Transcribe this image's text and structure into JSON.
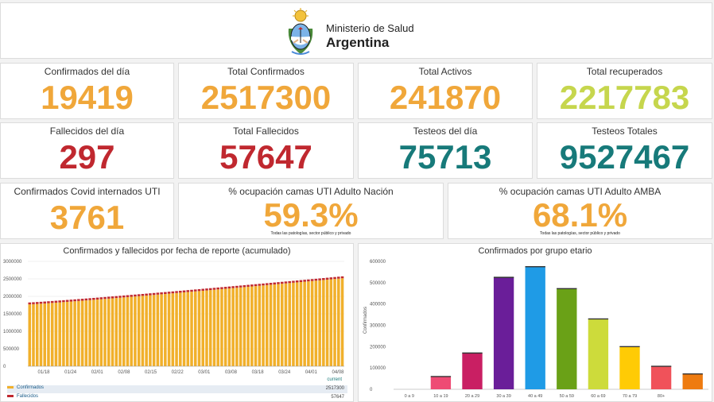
{
  "header": {
    "ministry": "Ministerio de Salud",
    "country": "Argentina"
  },
  "colors": {
    "orange": "#f0a73a",
    "lime": "#c6d64d",
    "red": "#c0282f",
    "teal": "#177a7a",
    "bar_orange": "#f1b02b",
    "line_red": "#c0282f"
  },
  "kpis": {
    "confirmados_dia": {
      "label": "Confirmados del día",
      "value": "19419"
    },
    "total_confirmados": {
      "label": "Total Confirmados",
      "value": "2517300"
    },
    "total_activos": {
      "label": "Total Activos",
      "value": "241870"
    },
    "total_recuperados": {
      "label": "Total recuperados",
      "value": "2217783"
    },
    "fallecidos_dia": {
      "label": "Fallecidos del día",
      "value": "297"
    },
    "total_fallecidos": {
      "label": "Total Fallecidos",
      "value": "57647"
    },
    "testeos_dia": {
      "label": "Testeos del día",
      "value": "75713"
    },
    "testeos_totales": {
      "label": "Testeos Totales",
      "value": "9527467"
    },
    "internados_uti": {
      "label": "Confirmados Covid internados UTI",
      "value": "3761"
    },
    "ocupacion_nacion": {
      "label": "% ocupación camas UTI Adulto Nación",
      "value": "59.3%",
      "note": "Todas las patologías, sector público y privado"
    },
    "ocupacion_amba": {
      "label": "% ocupación camas UTI Adulto AMBA",
      "value": "68.1%",
      "note": "Todas las patologías, sector público y privado"
    }
  },
  "legend": {
    "current_label": "current",
    "confirmados": {
      "label": "Confirmados",
      "value": "2517300"
    },
    "fallecidos": {
      "label": "Fallecidos",
      "value": "57647"
    }
  },
  "chart_data": [
    {
      "type": "bar",
      "title": "Confirmados y fallecidos por fecha de reporte (acumulado)",
      "ylim": [
        0,
        3000000
      ],
      "y_ticks": [
        "3000000",
        "2500000",
        "2000000",
        "1500000",
        "1000000",
        "500000",
        "0"
      ],
      "x_tick_labels": [
        "01/18",
        "01/24",
        "02/01",
        "02/08",
        "02/15",
        "02/22",
        "03/01",
        "03/08",
        "03/18",
        "03/24",
        "04/01",
        "04/08"
      ],
      "series": [
        {
          "name": "Confirmados",
          "start": 1770000,
          "end": 2517300
        },
        {
          "name": "Fallecidos",
          "start": 45000,
          "end": 57647
        }
      ],
      "n_bars": 84
    },
    {
      "type": "bar",
      "title": "Confirmados por grupo etario",
      "ylabel": "Confirmados",
      "ylim": [
        0,
        600000
      ],
      "y_ticks": [
        "600000",
        "500000",
        "400000",
        "300000",
        "200000",
        "100000",
        "0"
      ],
      "categories": [
        "0 a 9",
        "10 a 19",
        "20 a 29",
        "30 a 39",
        "40 a 49",
        "50 a 59",
        "60 a 69",
        "70 a 79",
        "80+",
        ""
      ],
      "values": [
        0,
        60000,
        170000,
        525000,
        575000,
        472000,
        330000,
        200000,
        108000,
        72000
      ],
      "bar_colors": [
        "#ee4b74",
        "#ee4b74",
        "#c91f63",
        "#6a1e99",
        "#1f9be6",
        "#6aa117",
        "#cddb3b",
        "#ffcb05",
        "#f0525a",
        "#ee7b10"
      ]
    }
  ]
}
